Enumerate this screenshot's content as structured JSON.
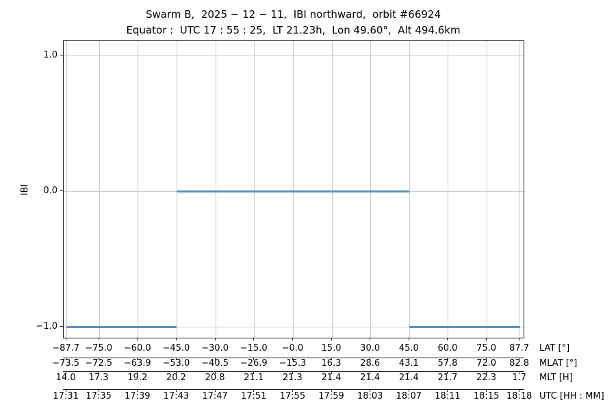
{
  "chart_data": {
    "type": "line",
    "title": "Swarm B,  2025 − 12 − 11,  IBI northward,  orbit #66924",
    "subtitle": "Equator :  UTC 17 : 55 : 25,  LT 21.23h,  Lon 49.60°,  Alt 494.6km",
    "ylabel": "IBI",
    "ylim": [
      -1.081,
      1.111
    ],
    "xlim_lat": [
      -88.8,
      89.4
    ],
    "grid": true,
    "legend": "none",
    "line_color": "#4d96c9",
    "y_ticks": [
      {
        "value": 1.0,
        "label": "1.0"
      },
      {
        "value": 0.0,
        "label": "0.0"
      },
      {
        "value": -1.0,
        "label": "−1.0"
      }
    ],
    "x_tick_lat_values": [
      -87.7,
      -75.0,
      -60.0,
      -45.0,
      -30.0,
      -15.0,
      0.0,
      15.0,
      30.0,
      45.0,
      60.0,
      75.0,
      87.7
    ],
    "x_axis_rows": [
      {
        "key": "lat",
        "name": "LAT [°]",
        "labels": [
          "−87.7",
          "−75.0",
          "−60.0",
          "−45.0",
          "−30.0",
          "−15.0",
          "−0.0",
          "15.0",
          "30.0",
          "45.0",
          "60.0",
          "75.0",
          "87.7"
        ]
      },
      {
        "key": "mlat",
        "name": "MLAT [°]",
        "labels": [
          "−73.5",
          "−72.5",
          "−63.9",
          "−53.0",
          "−40.5",
          "−26.9",
          "−15.3",
          "16.3",
          "28.6",
          "43.1",
          "57.8",
          "72.0",
          "82.8"
        ]
      },
      {
        "key": "mlt",
        "name": "MLT [H]",
        "labels": [
          "14.0",
          "17.3",
          "19.2",
          "20.2",
          "20.8",
          "21.1",
          "21.3",
          "21.4",
          "21.4",
          "21.4",
          "21.7",
          "22.3",
          "1.7"
        ]
      },
      {
        "key": "utc",
        "name": "UTC [HH : MM]",
        "labels": [
          "17:31",
          "17:35",
          "17:39",
          "17:43",
          "17:47",
          "17:51",
          "17:55",
          "17:59",
          "18:03",
          "18:07",
          "18:11",
          "18:15",
          "18:18"
        ]
      }
    ],
    "series": [
      {
        "name": "IBI",
        "segments": [
          {
            "y": -1.0,
            "lat_start": -87.7,
            "lat_end": -45.0
          },
          {
            "y": 0.0,
            "lat_start": -45.0,
            "lat_end": 45.0
          },
          {
            "y": -1.0,
            "lat_start": 45.0,
            "lat_end": 87.7
          }
        ]
      }
    ]
  },
  "colors": {
    "line": "#4d96c9",
    "grid": "#cccccc",
    "spine": "#1a1a1a",
    "text": "#000000",
    "background": "#ffffff"
  }
}
